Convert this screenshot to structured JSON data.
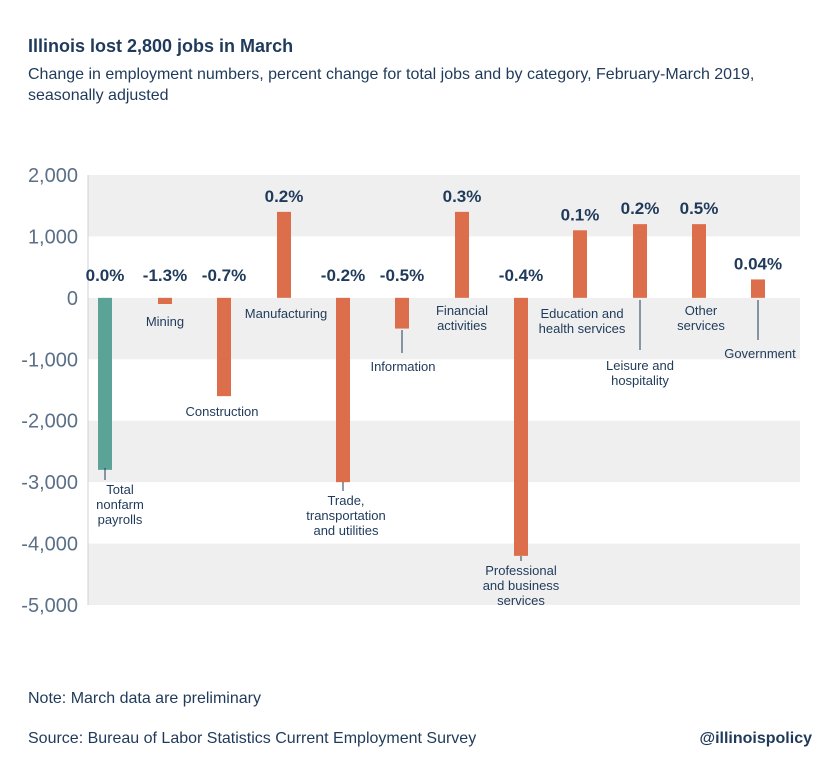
{
  "header": {
    "title": "Illinois lost 2,800 jobs in March",
    "subtitle": "Change in employment numbers, percent change for total jobs and by category, February-March 2019, seasonally adjusted"
  },
  "footer": {
    "note": "Note: March data are preliminary",
    "source": "Source: Bureau of Labor Statistics Current Employment Survey",
    "handle": "@illinoispolicy"
  },
  "colors": {
    "total_bar": "#5aa396",
    "category_bar": "#dc6e4c",
    "band": "#efefef",
    "text": "#1f3a5a",
    "axis_text": "#5b6f86"
  },
  "chart_data": {
    "type": "bar",
    "ylim": [
      -5000,
      2000
    ],
    "yticks": [
      2000,
      1000,
      0,
      -1000,
      -2000,
      -3000,
      -4000,
      -5000
    ],
    "ytick_labels": [
      "2,000",
      "1,000",
      "0",
      "-1,000",
      "-2,000",
      "-3,000",
      "-4,000",
      "-5,000"
    ],
    "categories": [
      "Total nonfarm payrolls",
      "Mining",
      "Construction",
      "Manufacturing",
      "Trade, transportation and utilities",
      "Information",
      "Financial activities",
      "Professional and business services",
      "Education and health services",
      "Leisure and hospitality",
      "Other services",
      "Government"
    ],
    "category_label_lines": [
      [
        "Total",
        "nonfarm",
        "payrolls"
      ],
      [
        "Mining"
      ],
      [
        "Construction"
      ],
      [
        "Manufacturing"
      ],
      [
        "Trade,",
        "transportation",
        "and utilities"
      ],
      [
        "Information"
      ],
      [
        "Financial",
        "activities"
      ],
      [
        "Professional",
        "and business",
        "services"
      ],
      [
        "Education and",
        "health services"
      ],
      [
        "Leisure and",
        "hospitality"
      ],
      [
        "Other",
        "services"
      ],
      [
        "Government"
      ]
    ],
    "values": [
      -2800,
      -100,
      -1600,
      1400,
      -3000,
      -500,
      1400,
      -4200,
      1100,
      1200,
      1200,
      300
    ],
    "percent_labels": [
      "0.0%",
      "-1.3%",
      "-0.7%",
      "0.2%",
      "-0.2%",
      "-0.5%",
      "0.3%",
      "-0.4%",
      "0.1%",
      "0.2%",
      "0.5%",
      "0.04%"
    ],
    "grid": false,
    "bands": true
  }
}
